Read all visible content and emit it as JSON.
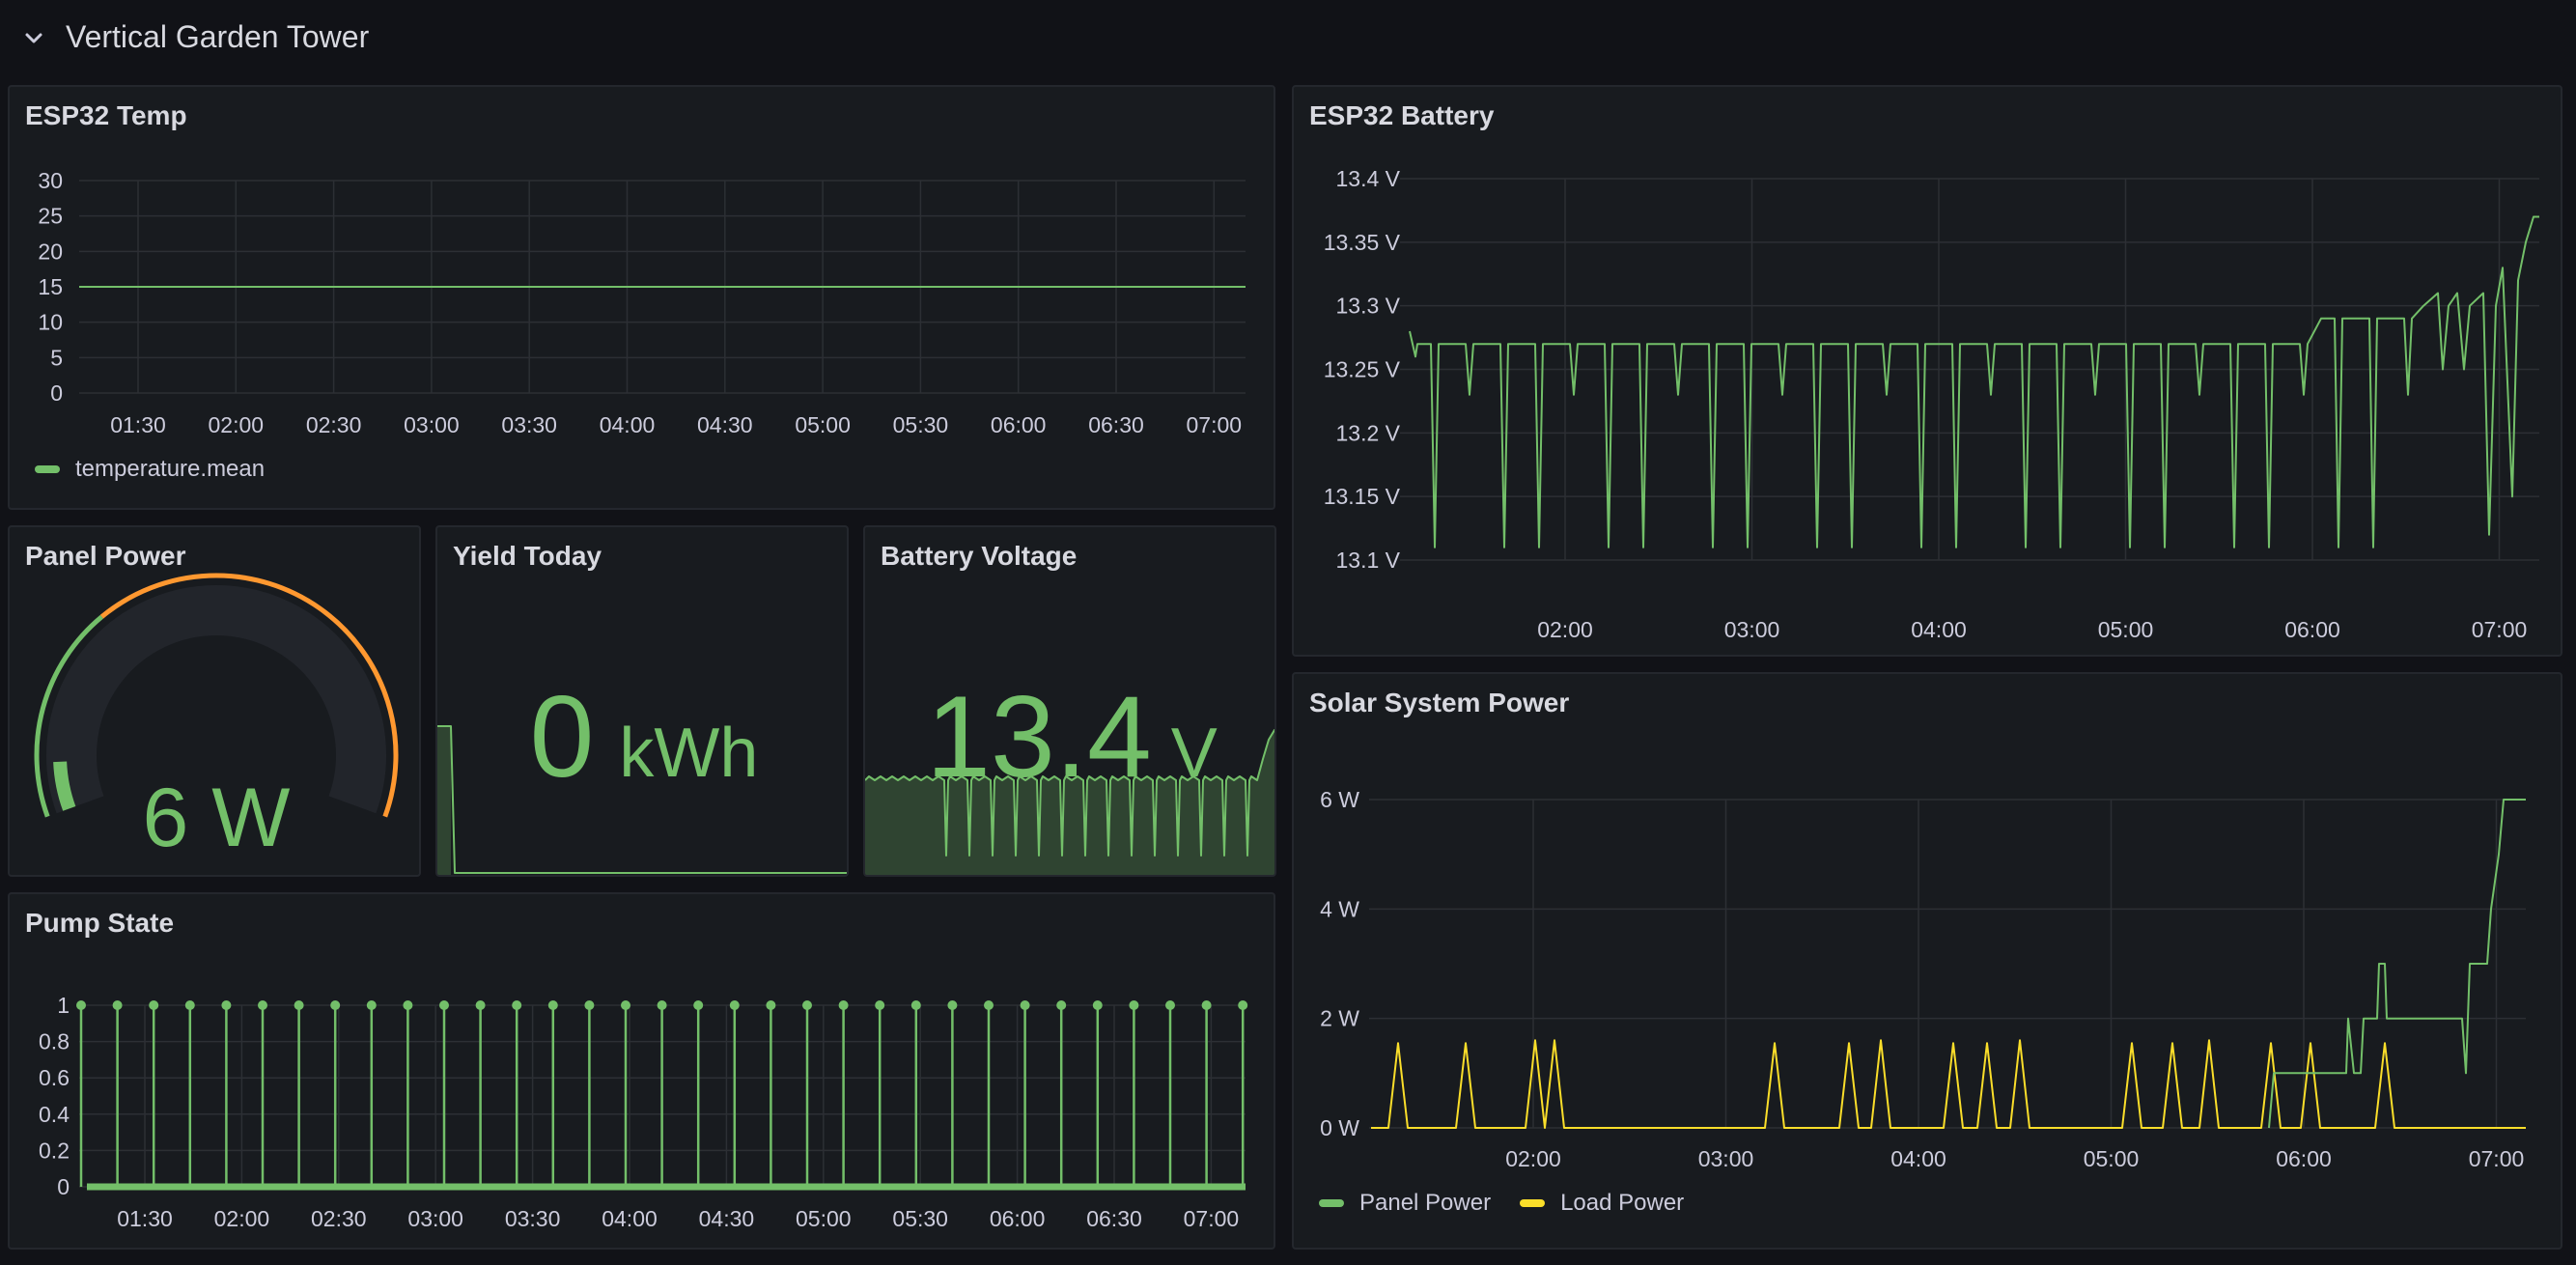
{
  "row": {
    "title": "Vertical Garden Tower",
    "chevron_icon": "chevron-down-icon"
  },
  "colors": {
    "green": "#73bf69",
    "yellow": "#fade2a",
    "orange": "#ff9830",
    "background": "#111217",
    "panel": "#181b1f"
  },
  "panels": {
    "esp32_temp": {
      "title": "ESP32 Temp",
      "legend": "temperature.mean",
      "chart_data": {
        "type": "line",
        "x_ticks": [
          "01:30",
          "02:00",
          "02:30",
          "03:00",
          "03:30",
          "04:00",
          "04:30",
          "05:00",
          "05:30",
          "06:00",
          "06:30",
          "07:00"
        ],
        "y_ticks": [
          "30",
          "25",
          "20",
          "15",
          "10",
          "5",
          "0"
        ],
        "ylim": [
          0,
          30
        ],
        "series": [
          {
            "name": "temperature.mean",
            "values": [
              15,
              15
            ]
          }
        ]
      }
    },
    "esp32_battery": {
      "title": "ESP32 Battery",
      "chart_data": {
        "type": "line",
        "x_ticks": [
          "02:00",
          "03:00",
          "04:00",
          "05:00",
          "06:00",
          "07:00"
        ],
        "y_ticks": [
          "13.4 V",
          "13.35 V",
          "13.3 V",
          "13.25 V",
          "13.2 V",
          "13.15 V",
          "13.1 V"
        ],
        "ylim": [
          13.1,
          13.4
        ]
      }
    },
    "panel_power": {
      "title": "Panel Power",
      "value": "6 W",
      "gauge_fraction": 0.08
    },
    "yield_today": {
      "title": "Yield Today",
      "value": "0",
      "unit": "kWh"
    },
    "battery_voltage": {
      "title": "Battery Voltage",
      "value": "13.4",
      "unit": "V"
    },
    "pump_state": {
      "title": "Pump State",
      "chart_data": {
        "type": "line",
        "x_ticks": [
          "01:30",
          "02:00",
          "02:30",
          "03:00",
          "03:30",
          "04:00",
          "04:30",
          "05:00",
          "05:30",
          "06:00",
          "06:30",
          "07:00"
        ],
        "y_ticks": [
          "1",
          "0.8",
          "0.6",
          "0.4",
          "0.2",
          "0"
        ],
        "ylim": [
          0,
          1
        ]
      }
    },
    "solar_power": {
      "title": "Solar System Power",
      "chart_data": {
        "type": "line",
        "x_ticks": [
          "02:00",
          "03:00",
          "04:00",
          "05:00",
          "06:00",
          "07:00"
        ],
        "y_ticks": [
          "6 W",
          "4 W",
          "2 W",
          "0 W"
        ],
        "ylim": [
          0,
          6
        ],
        "series": [
          {
            "name": "Panel Power",
            "color": "#73bf69"
          },
          {
            "name": "Load Power",
            "color": "#fade2a"
          }
        ]
      },
      "legend": [
        "Panel Power",
        "Load Power"
      ]
    }
  }
}
